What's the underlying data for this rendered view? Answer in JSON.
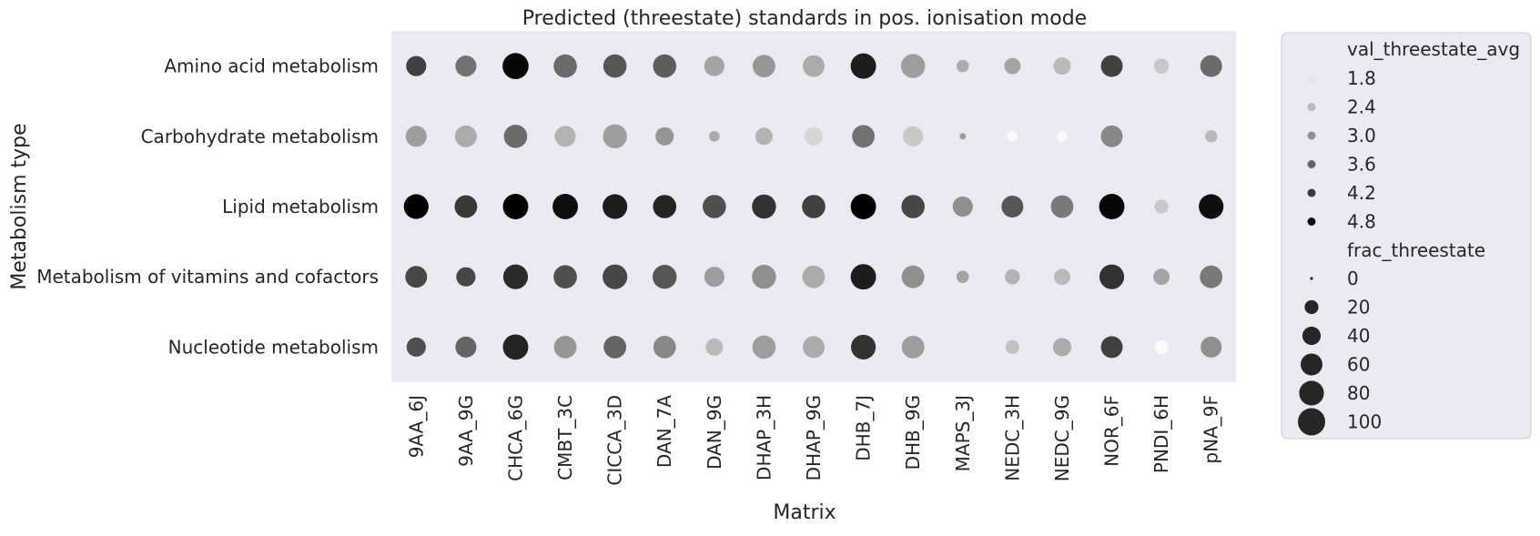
{
  "chart_data": {
    "type": "scatter",
    "title": "Predicted (threestate) standards in pos. ionisation mode",
    "xlabel": "Matrix",
    "ylabel": "Metabolism type",
    "categories_x": [
      "9AA_6J",
      "9AA_9G",
      "CHCA_6G",
      "CMBT_3C",
      "CICCA_3D",
      "DAN_7A",
      "DAN_9G",
      "DHAP_3H",
      "DHAP_9G",
      "DHB_7J",
      "DHB_9G",
      "MAPS_3J",
      "NEDC_3H",
      "NEDC_9G",
      "NOR_6F",
      "PNDI_6H",
      "pNA_9F"
    ],
    "categories_y": [
      "Amino acid metabolism",
      "Carbohydrate metabolism",
      "Lipid metabolism",
      "Metabolism of vitamins and cofactors",
      "Nucleotide metabolism"
    ],
    "color_scale": {
      "min": 1.5,
      "max": 5.0,
      "color_low": "#ffffff",
      "color_high": "#000000"
    },
    "size_scale": {
      "min": 0,
      "max": 100
    },
    "background": "#eaeaf2",
    "grid": false,
    "legend_position": "outside-right",
    "legend": {
      "hue_title": "val_threestate_avg",
      "hue_entries": [
        {
          "label": "1.8",
          "value": 1.8
        },
        {
          "label": "2.4",
          "value": 2.4
        },
        {
          "label": "3.0",
          "value": 3.0
        },
        {
          "label": "3.6",
          "value": 3.6
        },
        {
          "label": "4.2",
          "value": 4.2
        },
        {
          "label": "4.8",
          "value": 4.8
        }
      ],
      "size_title": "frac_threestate",
      "size_entries": [
        {
          "label": "0",
          "value": 0
        },
        {
          "label": "20",
          "value": 20
        },
        {
          "label": "40",
          "value": 40
        },
        {
          "label": "60",
          "value": 60
        },
        {
          "label": "80",
          "value": 80
        },
        {
          "label": "100",
          "value": 100
        }
      ]
    },
    "series": [
      {
        "values": [
          {
            "x": "9AA_6J",
            "y": "Amino acid metabolism",
            "hue": 4.1,
            "size": 50
          },
          {
            "x": "9AA_9G",
            "y": "Amino acid metabolism",
            "hue": 3.4,
            "size": 55
          },
          {
            "x": "CHCA_6G",
            "y": "Amino acid metabolism",
            "hue": 4.9,
            "size": 90
          },
          {
            "x": "CMBT_3C",
            "y": "Amino acid metabolism",
            "hue": 3.5,
            "size": 70
          },
          {
            "x": "CICCA_3D",
            "y": "Amino acid metabolism",
            "hue": 3.8,
            "size": 70
          },
          {
            "x": "DAN_7A",
            "y": "Amino acid metabolism",
            "hue": 3.7,
            "size": 70
          },
          {
            "x": "DAN_9G",
            "y": "Amino acid metabolism",
            "hue": 2.7,
            "size": 50
          },
          {
            "x": "DHAP_3H",
            "y": "Amino acid metabolism",
            "hue": 2.9,
            "size": 65
          },
          {
            "x": "DHAP_9G",
            "y": "Amino acid metabolism",
            "hue": 2.6,
            "size": 60
          },
          {
            "x": "DHB_7J",
            "y": "Amino acid metabolism",
            "hue": 4.6,
            "size": 85
          },
          {
            "x": "DHB_9G",
            "y": "Amino acid metabolism",
            "hue": 2.8,
            "size": 75
          },
          {
            "x": "MAPS_3J",
            "y": "Amino acid metabolism",
            "hue": 2.6,
            "size": 15
          },
          {
            "x": "NEDC_3H",
            "y": "Amino acid metabolism",
            "hue": 2.7,
            "size": 30
          },
          {
            "x": "NEDC_9G",
            "y": "Amino acid metabolism",
            "hue": 2.4,
            "size": 35
          },
          {
            "x": "NOR_6F",
            "y": "Amino acid metabolism",
            "hue": 4.1,
            "size": 60
          },
          {
            "x": "PNDI_6H",
            "y": "Amino acid metabolism",
            "hue": 2.2,
            "size": 25
          },
          {
            "x": "pNA_9F",
            "y": "Amino acid metabolism",
            "hue": 3.5,
            "size": 60
          },
          {
            "x": "9AA_6J",
            "y": "Carbohydrate metabolism",
            "hue": 2.8,
            "size": 55
          },
          {
            "x": "9AA_9G",
            "y": "Carbohydrate metabolism",
            "hue": 2.6,
            "size": 60
          },
          {
            "x": "CHCA_6G",
            "y": "Carbohydrate metabolism",
            "hue": 3.5,
            "size": 70
          },
          {
            "x": "CMBT_3C",
            "y": "Carbohydrate metabolism",
            "hue": 2.5,
            "size": 55
          },
          {
            "x": "CICCA_3D",
            "y": "Carbohydrate metabolism",
            "hue": 2.8,
            "size": 75
          },
          {
            "x": "DAN_7A",
            "y": "Carbohydrate metabolism",
            "hue": 2.9,
            "size": 40
          },
          {
            "x": "DAN_9G",
            "y": "Carbohydrate metabolism",
            "hue": 2.6,
            "size": 10
          },
          {
            "x": "DHAP_3H",
            "y": "Carbohydrate metabolism",
            "hue": 2.5,
            "size": 35
          },
          {
            "x": "DHAP_9G",
            "y": "Carbohydrate metabolism",
            "hue": 2.0,
            "size": 40
          },
          {
            "x": "DHB_7J",
            "y": "Carbohydrate metabolism",
            "hue": 3.4,
            "size": 65
          },
          {
            "x": "DHB_9G",
            "y": "Carbohydrate metabolism",
            "hue": 2.2,
            "size": 50
          },
          {
            "x": "MAPS_3J",
            "y": "Carbohydrate metabolism",
            "hue": 2.8,
            "size": 2
          },
          {
            "x": "NEDC_3H",
            "y": "Carbohydrate metabolism",
            "hue": 1.2,
            "size": 10
          },
          {
            "x": "NEDC_9G",
            "y": "Carbohydrate metabolism",
            "hue": 1.2,
            "size": 10
          },
          {
            "x": "NOR_6F",
            "y": "Carbohydrate metabolism",
            "hue": 3.1,
            "size": 60
          },
          {
            "x": "pNA_9F",
            "y": "Carbohydrate metabolism",
            "hue": 2.4,
            "size": 15
          },
          {
            "x": "9AA_6J",
            "y": "Lipid metabolism",
            "hue": 5.0,
            "size": 80
          },
          {
            "x": "9AA_9G",
            "y": "Lipid metabolism",
            "hue": 4.2,
            "size": 65
          },
          {
            "x": "CHCA_6G",
            "y": "Lipid metabolism",
            "hue": 5.0,
            "size": 85
          },
          {
            "x": "CMBT_3C",
            "y": "Lipid metabolism",
            "hue": 4.8,
            "size": 85
          },
          {
            "x": "CICCA_3D",
            "y": "Lipid metabolism",
            "hue": 4.6,
            "size": 80
          },
          {
            "x": "DAN_7A",
            "y": "Lipid metabolism",
            "hue": 4.5,
            "size": 70
          },
          {
            "x": "DAN_9G",
            "y": "Lipid metabolism",
            "hue": 3.9,
            "size": 70
          },
          {
            "x": "DHAP_3H",
            "y": "Lipid metabolism",
            "hue": 4.3,
            "size": 75
          },
          {
            "x": "DHAP_9G",
            "y": "Lipid metabolism",
            "hue": 4.1,
            "size": 70
          },
          {
            "x": "DHB_7J",
            "y": "Lipid metabolism",
            "hue": 5.0,
            "size": 85
          },
          {
            "x": "DHB_9G",
            "y": "Lipid metabolism",
            "hue": 4.0,
            "size": 70
          },
          {
            "x": "MAPS_3J",
            "y": "Lipid metabolism",
            "hue": 3.0,
            "size": 50
          },
          {
            "x": "NEDC_3H",
            "y": "Lipid metabolism",
            "hue": 3.8,
            "size": 60
          },
          {
            "x": "NEDC_9G",
            "y": "Lipid metabolism",
            "hue": 3.3,
            "size": 65
          },
          {
            "x": "NOR_6F",
            "y": "Lipid metabolism",
            "hue": 4.9,
            "size": 85
          },
          {
            "x": "PNDI_6H",
            "y": "Lipid metabolism",
            "hue": 2.2,
            "size": 20
          },
          {
            "x": "pNA_9F",
            "y": "Lipid metabolism",
            "hue": 4.8,
            "size": 80
          },
          {
            "x": "9AA_6J",
            "y": "Metabolism of vitamins and cofactors",
            "hue": 4.0,
            "size": 60
          },
          {
            "x": "9AA_9G",
            "y": "Metabolism of vitamins and cofactors",
            "hue": 4.0,
            "size": 45
          },
          {
            "x": "CHCA_6G",
            "y": "Metabolism of vitamins and cofactors",
            "hue": 4.4,
            "size": 80
          },
          {
            "x": "CMBT_3C",
            "y": "Metabolism of vitamins and cofactors",
            "hue": 3.9,
            "size": 70
          },
          {
            "x": "CICCA_3D",
            "y": "Metabolism of vitamins and cofactors",
            "hue": 4.0,
            "size": 80
          },
          {
            "x": "DAN_7A",
            "y": "Metabolism of vitamins and cofactors",
            "hue": 3.8,
            "size": 75
          },
          {
            "x": "DAN_9G",
            "y": "Metabolism of vitamins and cofactors",
            "hue": 2.8,
            "size": 50
          },
          {
            "x": "DHAP_3H",
            "y": "Metabolism of vitamins and cofactors",
            "hue": 3.0,
            "size": 75
          },
          {
            "x": "DHAP_9G",
            "y": "Metabolism of vitamins and cofactors",
            "hue": 2.6,
            "size": 65
          },
          {
            "x": "DHB_7J",
            "y": "Metabolism of vitamins and cofactors",
            "hue": 4.6,
            "size": 85
          },
          {
            "x": "DHB_9G",
            "y": "Metabolism of vitamins and cofactors",
            "hue": 3.0,
            "size": 65
          },
          {
            "x": "MAPS_3J",
            "y": "Metabolism of vitamins and cofactors",
            "hue": 2.7,
            "size": 15
          },
          {
            "x": "NEDC_3H",
            "y": "Metabolism of vitamins and cofactors",
            "hue": 2.5,
            "size": 25
          },
          {
            "x": "NEDC_9G",
            "y": "Metabolism of vitamins and cofactors",
            "hue": 2.4,
            "size": 30
          },
          {
            "x": "NOR_6F",
            "y": "Metabolism of vitamins and cofactors",
            "hue": 4.3,
            "size": 80
          },
          {
            "x": "PNDI_6H",
            "y": "Metabolism of vitamins and cofactors",
            "hue": 2.7,
            "size": 30
          },
          {
            "x": "pNA_9F",
            "y": "Metabolism of vitamins and cofactors",
            "hue": 3.3,
            "size": 65
          },
          {
            "x": "9AA_6J",
            "y": "Nucleotide metabolism",
            "hue": 3.9,
            "size": 45
          },
          {
            "x": "9AA_9G",
            "y": "Nucleotide metabolism",
            "hue": 3.6,
            "size": 55
          },
          {
            "x": "CHCA_6G",
            "y": "Nucleotide metabolism",
            "hue": 4.5,
            "size": 85
          },
          {
            "x": "CMBT_3C",
            "y": "Nucleotide metabolism",
            "hue": 2.9,
            "size": 65
          },
          {
            "x": "CICCA_3D",
            "y": "Nucleotide metabolism",
            "hue": 3.6,
            "size": 65
          },
          {
            "x": "DAN_7A",
            "y": "Nucleotide metabolism",
            "hue": 3.1,
            "size": 65
          },
          {
            "x": "DAN_9G",
            "y": "Nucleotide metabolism",
            "hue": 2.4,
            "size": 35
          },
          {
            "x": "DHAP_3H",
            "y": "Nucleotide metabolism",
            "hue": 2.8,
            "size": 70
          },
          {
            "x": "DHAP_9G",
            "y": "Nucleotide metabolism",
            "hue": 2.6,
            "size": 60
          },
          {
            "x": "DHB_7J",
            "y": "Nucleotide metabolism",
            "hue": 4.3,
            "size": 80
          },
          {
            "x": "DHB_9G",
            "y": "Nucleotide metabolism",
            "hue": 2.8,
            "size": 65
          },
          {
            "x": "NEDC_3H",
            "y": "Nucleotide metabolism",
            "hue": 2.3,
            "size": 20
          },
          {
            "x": "NEDC_9G",
            "y": "Nucleotide metabolism",
            "hue": 2.6,
            "size": 40
          },
          {
            "x": "NOR_6F",
            "y": "Nucleotide metabolism",
            "hue": 4.1,
            "size": 60
          },
          {
            "x": "PNDI_6H",
            "y": "Nucleotide metabolism",
            "hue": 1.5,
            "size": 20
          },
          {
            "x": "pNA_9F",
            "y": "Nucleotide metabolism",
            "hue": 3.0,
            "size": 55
          }
        ]
      }
    ]
  }
}
